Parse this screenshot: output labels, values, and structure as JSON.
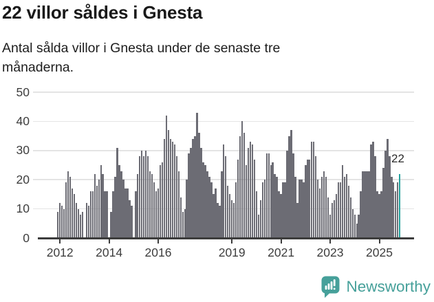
{
  "chart_data": {
    "type": "bar",
    "title": "22 villor såldes i Gnesta",
    "subtitle": "Antal sålda villor i Gnesta under de senaste tre månaderna.",
    "xlabel": "",
    "ylabel": "",
    "ylim": [
      0,
      50
    ],
    "y_ticks": [
      0,
      10,
      20,
      30,
      40,
      50
    ],
    "grid": "horizontal",
    "x_unit": "month",
    "x_tick_labels": [
      "2012",
      "2014",
      "2016",
      "2019",
      "2021",
      "2023",
      "2025"
    ],
    "x_tick_indices": [
      1,
      25,
      49,
      85,
      109,
      133,
      157
    ],
    "values": [
      9,
      12,
      11,
      10,
      19,
      23,
      21,
      17,
      15,
      12,
      10,
      8,
      9,
      0,
      12,
      11,
      16,
      16,
      22,
      18,
      20,
      25,
      22,
      16,
      16,
      0,
      9,
      16,
      21,
      31,
      25,
      23,
      20,
      17,
      17,
      13,
      11,
      0,
      16,
      22,
      28,
      30,
      28,
      30,
      28,
      23,
      22,
      19,
      16,
      17,
      25,
      26,
      34,
      42,
      37,
      34,
      33,
      32,
      28,
      23,
      14,
      9,
      10,
      20,
      29,
      31,
      34,
      35,
      43,
      36,
      31,
      26,
      25,
      23,
      21,
      19,
      15,
      17,
      12,
      11,
      23,
      32,
      28,
      18,
      15,
      13,
      12,
      19,
      27,
      35,
      40,
      36,
      25,
      31,
      33,
      32,
      27,
      16,
      8,
      13,
      19,
      20,
      29,
      29,
      25,
      26,
      22,
      21,
      16,
      15,
      19,
      19,
      30,
      35,
      37,
      29,
      21,
      12,
      20,
      20,
      19,
      25,
      27,
      27,
      33,
      33,
      28,
      20,
      17,
      21,
      23,
      21,
      14,
      8,
      12,
      13,
      15,
      19,
      19,
      25,
      21,
      22,
      18,
      14,
      10,
      8,
      5,
      8,
      16,
      23,
      23,
      23,
      23,
      32,
      33,
      28,
      16,
      15,
      16,
      24,
      30,
      34,
      28,
      21,
      19,
      16,
      19,
      22
    ],
    "highlight": {
      "index": 167,
      "value": 22,
      "label": "22"
    },
    "colors": {
      "bar": "#6C6C74",
      "highlight": "#26A29E",
      "gridline": "#E4E4E4",
      "axis": "#3C3C3C",
      "tick_label": "#3E3E3E",
      "annotation": "#2B2B2B"
    },
    "legend": "none"
  },
  "footer": {
    "brand": "Newsworthy",
    "brand_color": "#46A09A"
  }
}
